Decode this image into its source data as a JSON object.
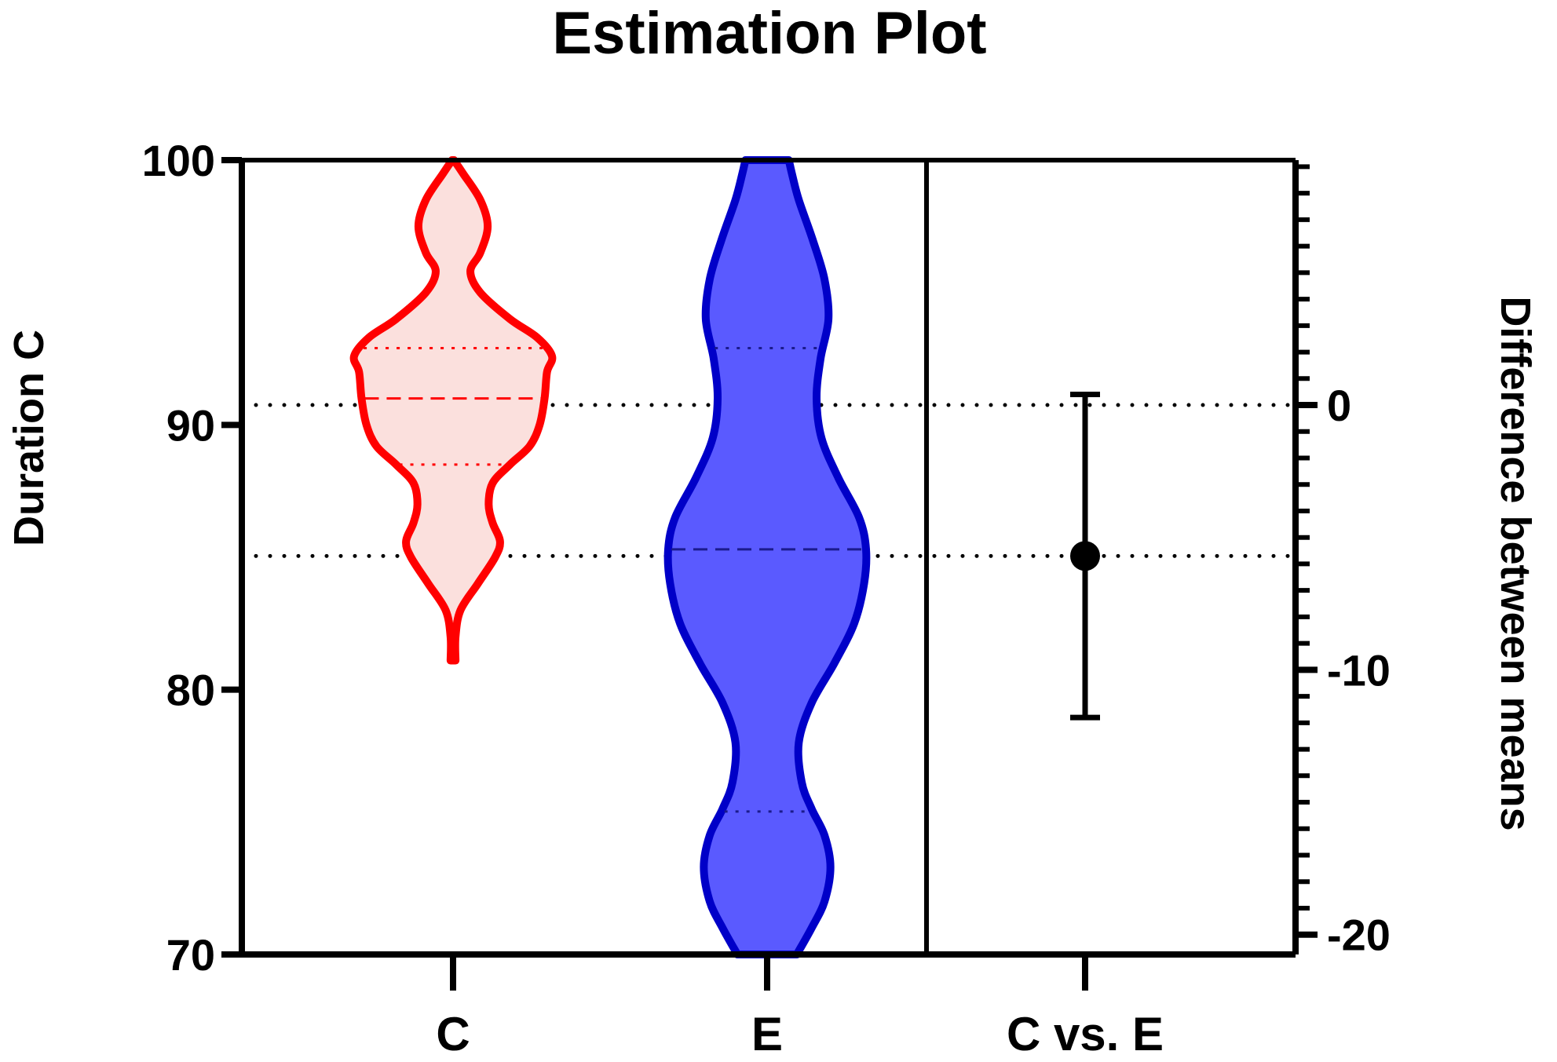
{
  "colors": {
    "axis": "#000000",
    "c_stroke": "#ff0000",
    "c_fill": "#fbe0dd",
    "e_stroke": "#0000c8",
    "e_fill": "#5a5aff",
    "estimate": "#000000"
  },
  "chart_data": {
    "type": "violin",
    "title": "Estimation Plot",
    "ylabel_left": "Duration C",
    "ylabel_right": "Difference between means",
    "ylim_left": [
      70,
      100
    ],
    "yticks_left": [
      "70",
      "80",
      "90",
      "100"
    ],
    "ylim_right": [
      -20.75,
      9.25
    ],
    "yticks_right": [
      "-20",
      "-10",
      "0"
    ],
    "categories": [
      "C",
      "E",
      "C vs. E"
    ],
    "groups": [
      {
        "name": "C",
        "median": 91.0,
        "q1": 88.5,
        "q3": 92.9,
        "min": 81.1,
        "max": 100.0,
        "density_profile": [
          [
            81.1,
            0.05
          ],
          [
            82.0,
            0.05
          ],
          [
            83.0,
            0.15
          ],
          [
            84.0,
            0.5
          ],
          [
            85.0,
            0.85
          ],
          [
            85.6,
            0.95
          ],
          [
            86.3,
            0.8
          ],
          [
            87.0,
            0.72
          ],
          [
            87.8,
            0.8
          ],
          [
            88.5,
            1.15
          ],
          [
            89.2,
            1.55
          ],
          [
            90.0,
            1.75
          ],
          [
            91.0,
            1.85
          ],
          [
            92.0,
            1.9
          ],
          [
            92.6,
            2.0
          ],
          [
            93.3,
            1.7
          ],
          [
            94.0,
            1.15
          ],
          [
            95.0,
            0.55
          ],
          [
            95.8,
            0.35
          ],
          [
            96.5,
            0.55
          ],
          [
            97.5,
            0.7
          ],
          [
            98.5,
            0.55
          ],
          [
            99.5,
            0.2
          ],
          [
            100.0,
            0.02
          ]
        ]
      },
      {
        "name": "E",
        "median": 85.3,
        "q1": 75.4,
        "q3": 92.9,
        "min": 70.0,
        "max": 100.0,
        "density_profile": [
          [
            70.0,
            0.3
          ],
          [
            71.0,
            0.45
          ],
          [
            72.0,
            0.58
          ],
          [
            73.3,
            0.64
          ],
          [
            74.5,
            0.58
          ],
          [
            75.5,
            0.45
          ],
          [
            76.5,
            0.35
          ],
          [
            78.0,
            0.32
          ],
          [
            79.5,
            0.45
          ],
          [
            81.0,
            0.68
          ],
          [
            82.5,
            0.88
          ],
          [
            84.0,
            0.98
          ],
          [
            85.3,
            1.0
          ],
          [
            86.5,
            0.93
          ],
          [
            88.0,
            0.72
          ],
          [
            89.5,
            0.55
          ],
          [
            91.0,
            0.5
          ],
          [
            92.5,
            0.54
          ],
          [
            94.0,
            0.62
          ],
          [
            95.5,
            0.58
          ],
          [
            97.0,
            0.46
          ],
          [
            98.5,
            0.32
          ],
          [
            99.5,
            0.25
          ],
          [
            100.0,
            0.22
          ]
        ]
      }
    ],
    "estimate": {
      "label": "C vs. E",
      "mean_difference": -5.7,
      "ci": [
        -11.8,
        0.4
      ]
    },
    "reference_lines": [
      {
        "axis": "right",
        "value": 0
      },
      {
        "axis": "right",
        "value": -5.7
      }
    ],
    "grid": false,
    "legend": "none"
  }
}
